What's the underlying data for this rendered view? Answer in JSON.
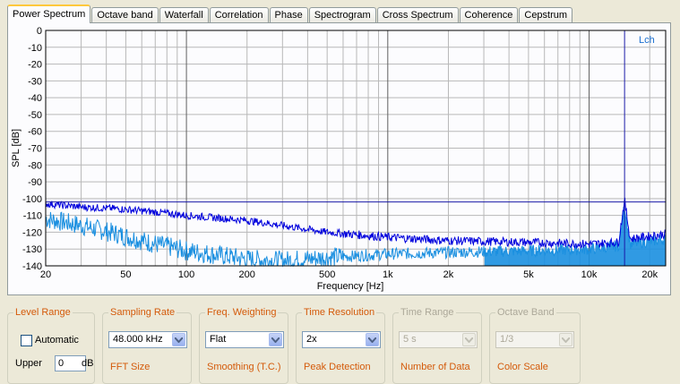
{
  "tabs": [
    "Power Spectrum",
    "Octave band",
    "Waterfall",
    "Correlation",
    "Phase",
    "Spectrogram",
    "Cross Spectrum",
    "Coherence",
    "Cepstrum"
  ],
  "active_tab": 0,
  "chart_data": {
    "type": "line",
    "xscale": "log",
    "xlim": [
      20,
      24000
    ],
    "ylim": [
      -140,
      0
    ],
    "xlabel": "Frequency [Hz]",
    "ylabel": "SPL [dB]",
    "yticks": [
      0,
      -10,
      -20,
      -30,
      -40,
      -50,
      -60,
      -70,
      -80,
      -90,
      -100,
      -110,
      -120,
      -130,
      -140
    ],
    "xticks": [
      {
        "v": 20,
        "t": "20"
      },
      {
        "v": 50,
        "t": "50"
      },
      {
        "v": 100,
        "t": "100"
      },
      {
        "v": 200,
        "t": "200"
      },
      {
        "v": 500,
        "t": "500"
      },
      {
        "v": 1000,
        "t": "1k"
      },
      {
        "v": 2000,
        "t": "2k"
      },
      {
        "v": 5000,
        "t": "5k"
      },
      {
        "v": 10000,
        "t": "10k"
      },
      {
        "v": 20000,
        "t": "20k"
      }
    ],
    "channel_label": "Lch",
    "cursor_x": 15000,
    "reference_level": -102,
    "series": [
      {
        "color": "#0000dd",
        "x": [
          20,
          30,
          45,
          70,
          100,
          200,
          300,
          500,
          1000,
          2000,
          5000,
          10000,
          14000,
          15000,
          16000,
          24000
        ],
        "y": [
          -103,
          -105,
          -106,
          -108,
          -110,
          -113,
          -116,
          -120,
          -123,
          -125,
          -126,
          -127,
          -126,
          -101,
          -124,
          -121
        ]
      },
      {
        "color": "#1a8fe0",
        "x": [
          20,
          30,
          45,
          70,
          100,
          200,
          300,
          500,
          1000,
          2000,
          5000,
          10000,
          14000,
          15000,
          16000,
          24000
        ],
        "y": [
          -112,
          -116,
          -121,
          -127,
          -131,
          -136,
          -137,
          -135,
          -133,
          -132,
          -131,
          -130,
          -128,
          -104,
          -127,
          -124
        ]
      }
    ]
  },
  "controls": {
    "level_range": {
      "title": "Level Range",
      "automatic_label": "Automatic",
      "upper_label": "Upper",
      "upper_value": "0",
      "upper_unit": "dB"
    },
    "sampling_rate": {
      "title": "Sampling Rate",
      "value": "48.000 kHz",
      "title2": "FFT Size"
    },
    "freq_weighting": {
      "title": "Freq. Weighting",
      "value": "Flat",
      "title2": "Smoothing (T.C.)"
    },
    "time_resolution": {
      "title": "Time Resolution",
      "value": "2x",
      "title2": "Peak Detection"
    },
    "time_range": {
      "title": "Time Range",
      "value": "5 s",
      "title2": "Number of Data"
    },
    "octave_band": {
      "title": "Octave Band",
      "value": "1/3",
      "title2": "Color Scale"
    }
  }
}
